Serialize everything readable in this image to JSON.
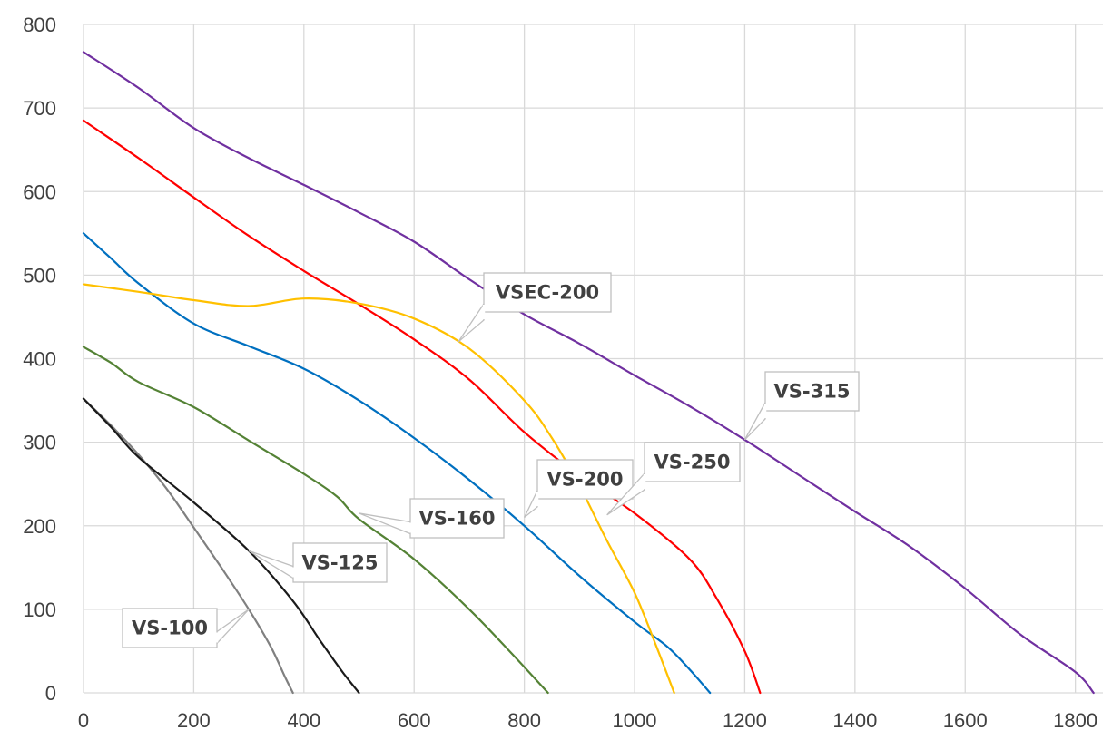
{
  "chart_data": {
    "type": "line",
    "title": "",
    "xlabel": "",
    "ylabel": "",
    "xlim": [
      0,
      1850
    ],
    "ylim": [
      0,
      800
    ],
    "x_ticks": [
      0,
      200,
      400,
      600,
      800,
      1000,
      1200,
      1400,
      1600,
      1800
    ],
    "y_ticks": [
      0,
      100,
      200,
      300,
      400,
      500,
      600,
      700,
      800
    ],
    "grid": true,
    "legend": "none",
    "series": [
      {
        "name": "VS-100",
        "color": "#808080",
        "points": [
          [
            0,
            352
          ],
          [
            50,
            320
          ],
          [
            100,
            285
          ],
          [
            150,
            245
          ],
          [
            200,
            198
          ],
          [
            250,
            150
          ],
          [
            300,
            100
          ],
          [
            340,
            55
          ],
          [
            365,
            20
          ],
          [
            380,
            0
          ]
        ],
        "label_anchor": [
          300,
          100
        ]
      },
      {
        "name": "VS-125",
        "color": "#1a1a1a",
        "points": [
          [
            0,
            352
          ],
          [
            50,
            318
          ],
          [
            100,
            282
          ],
          [
            200,
            228
          ],
          [
            300,
            170
          ],
          [
            380,
            110
          ],
          [
            430,
            62
          ],
          [
            470,
            25
          ],
          [
            500,
            0
          ]
        ],
        "label_anchor": [
          300,
          170
        ]
      },
      {
        "name": "VS-160",
        "color": "#548235",
        "points": [
          [
            0,
            414
          ],
          [
            50,
            395
          ],
          [
            100,
            372
          ],
          [
            200,
            342
          ],
          [
            300,
            302
          ],
          [
            400,
            262
          ],
          [
            460,
            235
          ],
          [
            500,
            208
          ],
          [
            600,
            160
          ],
          [
            700,
            100
          ],
          [
            780,
            45
          ],
          [
            843,
            0
          ]
        ],
        "label_anchor": [
          500,
          215
        ]
      },
      {
        "name": "VS-200",
        "color": "#0070c0",
        "points": [
          [
            0,
            550
          ],
          [
            50,
            520
          ],
          [
            100,
            490
          ],
          [
            200,
            442
          ],
          [
            300,
            415
          ],
          [
            400,
            388
          ],
          [
            500,
            350
          ],
          [
            600,
            305
          ],
          [
            700,
            255
          ],
          [
            800,
            200
          ],
          [
            900,
            140
          ],
          [
            1000,
            85
          ],
          [
            1060,
            55
          ],
          [
            1100,
            28
          ],
          [
            1137,
            0
          ]
        ],
        "label_anchor": [
          800,
          210
        ]
      },
      {
        "name": "VS-250",
        "color": "#ff0000",
        "points": [
          [
            0,
            685
          ],
          [
            100,
            640
          ],
          [
            200,
            593
          ],
          [
            300,
            547
          ],
          [
            400,
            505
          ],
          [
            500,
            465
          ],
          [
            600,
            423
          ],
          [
            700,
            375
          ],
          [
            800,
            312
          ],
          [
            900,
            260
          ],
          [
            1000,
            215
          ],
          [
            1100,
            160
          ],
          [
            1150,
            112
          ],
          [
            1200,
            50
          ],
          [
            1228,
            0
          ]
        ],
        "label_anchor": [
          950,
          213
        ]
      },
      {
        "name": "VSEC-200",
        "color": "#ffc000",
        "points": [
          [
            0,
            489
          ],
          [
            100,
            480
          ],
          [
            200,
            470
          ],
          [
            300,
            463
          ],
          [
            400,
            472
          ],
          [
            500,
            466
          ],
          [
            600,
            448
          ],
          [
            700,
            412
          ],
          [
            800,
            350
          ],
          [
            850,
            305
          ],
          [
            900,
            248
          ],
          [
            950,
            182
          ],
          [
            1000,
            120
          ],
          [
            1040,
            55
          ],
          [
            1072,
            0
          ]
        ],
        "label_anchor": [
          680,
          420
        ]
      },
      {
        "name": "VS-315",
        "color": "#7030a0",
        "points": [
          [
            0,
            767
          ],
          [
            100,
            724
          ],
          [
            200,
            676
          ],
          [
            300,
            640
          ],
          [
            400,
            608
          ],
          [
            500,
            575
          ],
          [
            600,
            540
          ],
          [
            700,
            495
          ],
          [
            800,
            453
          ],
          [
            900,
            418
          ],
          [
            1000,
            380
          ],
          [
            1100,
            343
          ],
          [
            1200,
            303
          ],
          [
            1300,
            260
          ],
          [
            1400,
            217
          ],
          [
            1500,
            175
          ],
          [
            1600,
            125
          ],
          [
            1700,
            70
          ],
          [
            1800,
            25
          ],
          [
            1833,
            0
          ]
        ],
        "label_anchor": [
          1200,
          303
        ]
      }
    ]
  }
}
